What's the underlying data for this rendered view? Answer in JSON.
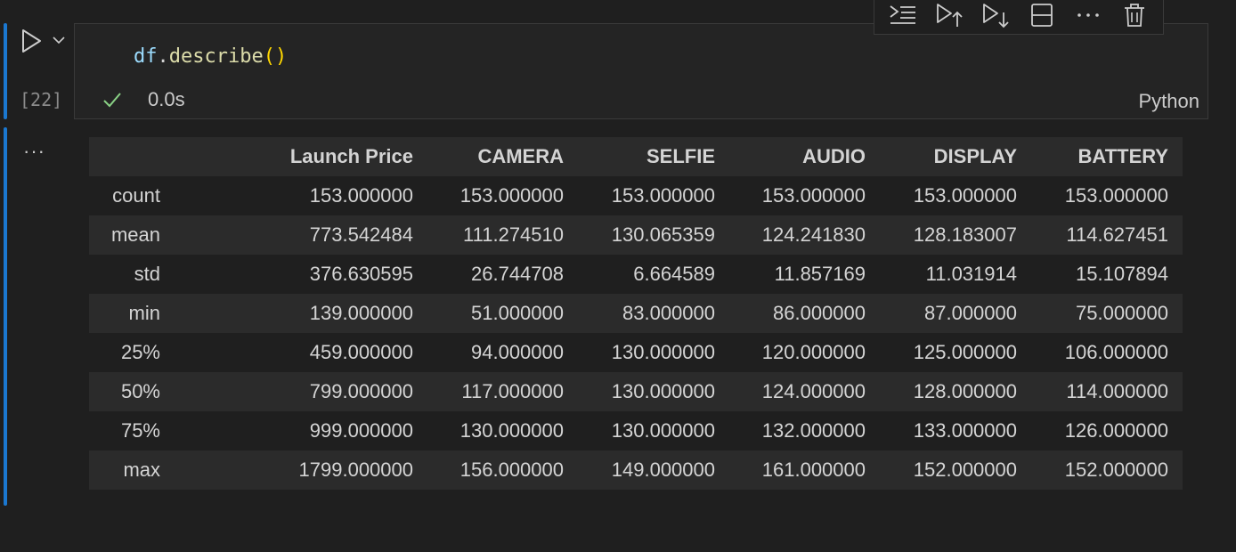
{
  "cell": {
    "execution_count": "[22]",
    "code": {
      "var": "df",
      "dot": ".",
      "fn": "describe",
      "parens": "()"
    },
    "elapsed": "0.0s",
    "language": "Python",
    "colors": {
      "accent_bar": "#1b78d0",
      "success": "#89d185"
    }
  },
  "toolbar": {
    "icons": [
      "execute-above-icon",
      "run-above-icon",
      "run-below-icon",
      "split-cell-icon",
      "more-icon",
      "delete-icon"
    ]
  },
  "output": {
    "more_label": "···",
    "table": {
      "columns": [
        "",
        "Launch Price",
        "CAMERA",
        "SELFIE",
        "AUDIO",
        "DISPLAY",
        "BATTERY"
      ],
      "rows": [
        [
          "count",
          "153.000000",
          "153.000000",
          "153.000000",
          "153.000000",
          "153.000000",
          "153.000000"
        ],
        [
          "mean",
          "773.542484",
          "111.274510",
          "130.065359",
          "124.241830",
          "128.183007",
          "114.627451"
        ],
        [
          "std",
          "376.630595",
          "26.744708",
          "6.664589",
          "11.857169",
          "11.031914",
          "15.107894"
        ],
        [
          "min",
          "139.000000",
          "51.000000",
          "83.000000",
          "86.000000",
          "87.000000",
          "75.000000"
        ],
        [
          "25%",
          "459.000000",
          "94.000000",
          "130.000000",
          "120.000000",
          "125.000000",
          "106.000000"
        ],
        [
          "50%",
          "799.000000",
          "117.000000",
          "130.000000",
          "124.000000",
          "128.000000",
          "114.000000"
        ],
        [
          "75%",
          "999.000000",
          "130.000000",
          "130.000000",
          "132.000000",
          "133.000000",
          "126.000000"
        ],
        [
          "max",
          "1799.000000",
          "156.000000",
          "149.000000",
          "161.000000",
          "152.000000",
          "152.000000"
        ]
      ]
    }
  }
}
